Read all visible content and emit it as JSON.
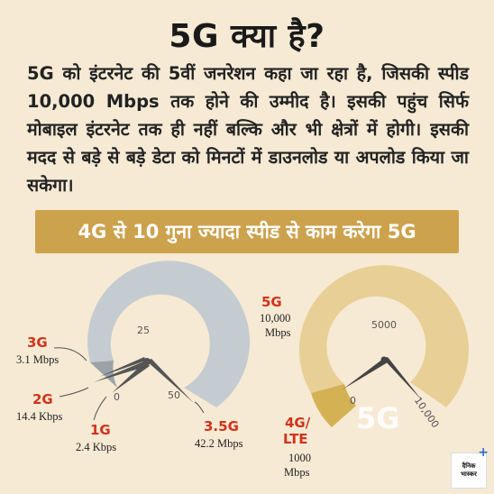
{
  "title": "5G क्या है?",
  "intro": "5G को इंटरनेट की 5वीं जनरेशन कहा जा रहा है, जिसकी स्पीड 10,000 Mbps तक होने की उम्मीद है। इसकी पहुंच सिर्फ मोबाइल इंटरनेट तक ही नहीं बल्कि और भी क्षेत्रों में होगी। इसकी मदद से बड़े से बड़े डेटा को मिनटों में डाउनलोड या अपलोड किया जा सकेगा।",
  "banner": "4G से 10 गुना ज्यादा स्पीड से काम करेगा 5G",
  "left_gauge": {
    "ticks": [
      "0",
      "25",
      "50"
    ],
    "labels": [
      {
        "gen": "3G",
        "speed": "3.1 Mbps"
      },
      {
        "gen": "2G",
        "speed": "14.4 Kbps"
      },
      {
        "gen": "1G",
        "speed": "2.4 Kbps"
      },
      {
        "gen": "3.5G",
        "speed": "42.2 Mbps"
      }
    ]
  },
  "right_gauge": {
    "ticks": [
      "0",
      "5000",
      "10,000"
    ],
    "center_label": "5G",
    "labels": [
      {
        "gen": "5G",
        "speed_line1": "10,000",
        "speed_line2": "Mbps"
      },
      {
        "gen_line1": "4G/",
        "gen_line2": "LTE",
        "speed_line1": "1000",
        "speed_line2": "Mbps"
      }
    ]
  },
  "logo": {
    "line1": "दैनिक",
    "line2": "भास्कर",
    "plus": "+"
  },
  "colors": {
    "background": "#f6ead4",
    "banner": "#cda24d",
    "left_gauge": "#c5ccd1",
    "right_gauge": "#e8cf95",
    "accent_red": "#d3321b"
  }
}
